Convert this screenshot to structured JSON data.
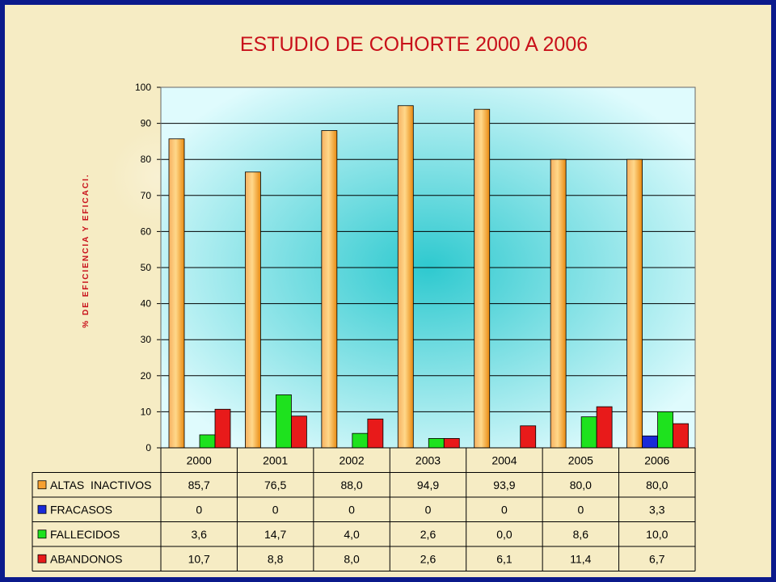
{
  "colors": {
    "frame": "#0b1a8c",
    "background": "#f6ecc4",
    "title": "#c8101a",
    "plot_center": "#2ec9cf",
    "plot_edge": "#dffbfd",
    "altas": "#f7a030",
    "fracasos": "#1a2ad8",
    "fallecidos": "#1ee21e",
    "abandonos": "#e81a1a"
  },
  "chart_data": {
    "type": "bar",
    "title": "ESTUDIO DE COHORTE 2000 A 2006",
    "xlabel": "",
    "ylabel": "% DE EFICIENCIA Y EFICACI.",
    "ylim": [
      0,
      100
    ],
    "yticks": [
      "0",
      "10",
      "20",
      "30",
      "40",
      "50",
      "60",
      "70",
      "80",
      "90",
      "100"
    ],
    "categories": [
      "2000",
      "2001",
      "2002",
      "2003",
      "2004",
      "2005",
      "2006"
    ],
    "grid": true,
    "legend_placement": "data-table-left",
    "series": [
      {
        "name": "ALTAS  INACTIVOS",
        "color_key": "altas",
        "values": [
          85.7,
          76.5,
          88.0,
          94.9,
          93.9,
          80.0,
          80.0
        ],
        "labels": [
          "85,7",
          "76,5",
          "88,0",
          "94,9",
          "93,9",
          "80,0",
          "80,0"
        ]
      },
      {
        "name": "FRACASOS",
        "color_key": "fracasos",
        "values": [
          0,
          0,
          0,
          0,
          0,
          0,
          3.3
        ],
        "labels": [
          "0",
          "0",
          "0",
          "0",
          "0",
          "0",
          "3,3"
        ]
      },
      {
        "name": "FALLECIDOS",
        "color_key": "fallecidos",
        "values": [
          3.6,
          14.7,
          4.0,
          2.6,
          0.0,
          8.6,
          10.0
        ],
        "labels": [
          "3,6",
          "14,7",
          "4,0",
          "2,6",
          "0,0",
          "8,6",
          "10,0"
        ]
      },
      {
        "name": "ABANDONOS",
        "color_key": "abandonos",
        "values": [
          10.7,
          8.8,
          8.0,
          2.6,
          6.1,
          11.4,
          6.7
        ],
        "labels": [
          "10,7",
          "8,8",
          "8,0",
          "2,6",
          "6,1",
          "11,4",
          "6,7"
        ]
      }
    ]
  }
}
